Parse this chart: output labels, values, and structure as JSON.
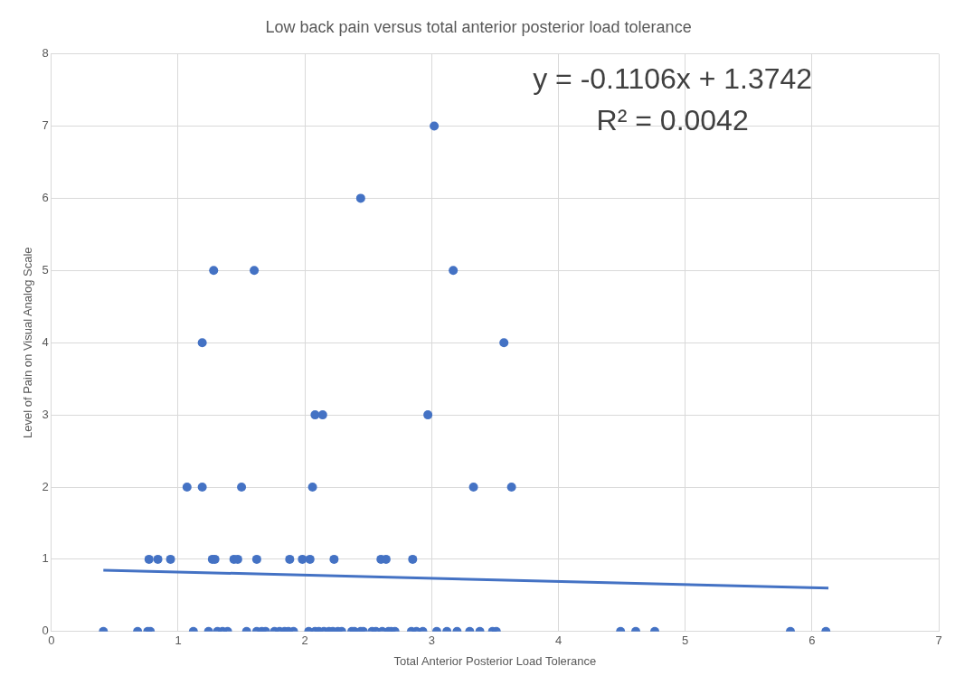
{
  "chart_data": {
    "type": "scatter",
    "title": "Low back pain versus total anterior posterior load tolerance",
    "xlabel": "Total Anterior Posterior Load Tolerance",
    "ylabel": "Level of Pain on Visual Analog Scale",
    "annotations": [
      "y = -0.1106x + 1.3742",
      "R² = 0.0042"
    ],
    "xlim": [
      0,
      7
    ],
    "xticks": [
      0,
      1,
      2,
      3,
      4,
      5,
      6,
      7
    ],
    "ylim": [
      0,
      8
    ],
    "yticks": [
      0,
      1,
      2,
      3,
      4,
      5,
      6,
      7,
      8
    ],
    "grid": true,
    "legend": false,
    "marker": "circle",
    "series": [
      {
        "color": "#4472c4",
        "x": [
          0.41,
          0.68,
          0.76,
          0.78,
          1.12,
          1.24,
          1.31,
          1.35,
          1.39,
          1.54,
          1.62,
          1.66,
          1.69,
          1.76,
          1.8,
          1.84,
          1.87,
          1.91,
          2.03,
          2.08,
          2.11,
          2.15,
          2.19,
          2.22,
          2.26,
          2.29,
          2.37,
          2.39,
          2.44,
          2.46,
          2.53,
          2.56,
          2.61,
          2.66,
          2.68,
          2.71,
          2.84,
          2.88,
          2.93,
          3.04,
          3.12,
          3.2,
          3.3,
          3.38,
          3.48,
          3.51,
          4.49,
          4.61,
          4.76,
          5.83,
          6.11,
          0.77,
          0.84,
          0.94,
          1.27,
          1.29,
          1.44,
          1.47,
          1.62,
          1.88,
          1.98,
          2.04,
          2.23,
          2.6,
          2.64,
          2.85,
          1.07,
          1.19,
          1.5,
          2.06,
          3.33,
          3.63,
          2.08,
          2.14,
          2.97,
          1.19,
          3.57,
          1.28,
          1.6,
          3.17,
          2.44,
          3.02
        ],
        "values": [
          0,
          0,
          0,
          0,
          0,
          0,
          0,
          0,
          0,
          0,
          0,
          0,
          0,
          0,
          0,
          0,
          0,
          0,
          0,
          0,
          0,
          0,
          0,
          0,
          0,
          0,
          0,
          0,
          0,
          0,
          0,
          0,
          0,
          0,
          0,
          0,
          0,
          0,
          0,
          0,
          0,
          0,
          0,
          0,
          0,
          0,
          0,
          0,
          0,
          0,
          0,
          1,
          1,
          1,
          1,
          1,
          1,
          1,
          1,
          1,
          1,
          1,
          1,
          1,
          1,
          1,
          2,
          2,
          2,
          2,
          2,
          2,
          3,
          3,
          3,
          4,
          4,
          5,
          5,
          5,
          6,
          7
        ]
      },
      {
        "type": "line",
        "color": "#4472c4",
        "marker": "none",
        "x": [
          0.41,
          6.13
        ],
        "values": [
          0.85,
          0.6
        ]
      }
    ]
  }
}
